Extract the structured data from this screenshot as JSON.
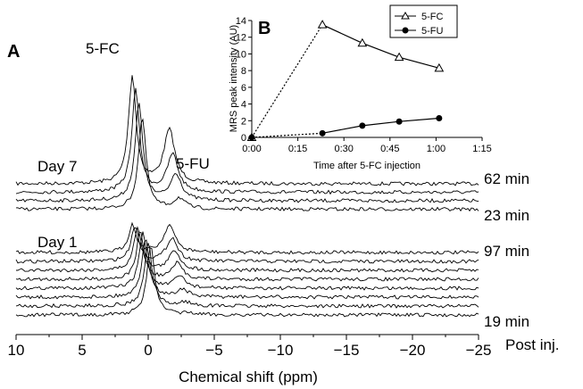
{
  "chart_data": [
    {
      "type": "line",
      "panel_label": "A",
      "xlabel": "Chemical shift (ppm)",
      "x_tick_labels": [
        "10",
        "5",
        "0",
        "−5",
        "−10",
        "−15",
        "−20",
        "−25"
      ],
      "x_ticks": [
        10,
        5,
        0,
        -5,
        -10,
        -15,
        -20,
        -25
      ],
      "xlim": [
        10,
        -25
      ],
      "post_inj_label": "Post inj.",
      "peak_labels": {
        "fc": "5-FC",
        "fu": "5-FU"
      },
      "peak_positions_ppm": {
        "fc": 1.2,
        "fu": -1.6
      },
      "groups": [
        {
          "label": "Day 7",
          "time_labels": [
            "62 min",
            "23 min"
          ],
          "traces": [
            {
              "fc": 1.0,
              "fu": 0.5
            },
            {
              "fc": 0.95,
              "fu": 0.35
            },
            {
              "fc": 0.9,
              "fu": 0.25
            },
            {
              "fc": 0.85,
              "fu": 0.1
            }
          ]
        },
        {
          "label": "Day 1",
          "time_labels": [
            "97 min",
            "19 min"
          ],
          "traces": [
            {
              "fc": 0.35,
              "fu": 0.35
            },
            {
              "fc": 0.45,
              "fu": 0.3
            },
            {
              "fc": 0.55,
              "fu": 0.25
            },
            {
              "fc": 0.6,
              "fu": 0.2
            },
            {
              "fc": 0.7,
              "fu": 0.15
            },
            {
              "fc": 0.75,
              "fu": 0.1
            },
            {
              "fc": 0.8,
              "fu": 0.05
            },
            {
              "fc": 0.9,
              "fu": 0.02
            }
          ]
        }
      ]
    },
    {
      "type": "line",
      "panel_label": "B",
      "xlabel": "Time after 5-FC injection",
      "ylabel": "MRS peak intensity (AU)",
      "x_tick_labels": [
        "0:00",
        "0:15",
        "0:30",
        "0:45",
        "1:00",
        "1:15"
      ],
      "x_ticks_min": [
        0,
        15,
        30,
        45,
        60,
        75
      ],
      "y_ticks": [
        0,
        2,
        4,
        6,
        8,
        10,
        12,
        14
      ],
      "xlim_min": [
        0,
        75
      ],
      "ylim": [
        0,
        14
      ],
      "legend_position": "top-right",
      "series": [
        {
          "name": "5-FC",
          "marker": "open-triangle",
          "x_min": [
            0,
            23,
            36,
            48,
            61
          ],
          "y": [
            0,
            13.5,
            11.3,
            9.6,
            8.3
          ]
        },
        {
          "name": "5-FU",
          "marker": "filled-circle",
          "x_min": [
            0,
            23,
            36,
            48,
            61
          ],
          "y": [
            0,
            0.5,
            1.4,
            1.9,
            2.3
          ]
        }
      ]
    }
  ]
}
